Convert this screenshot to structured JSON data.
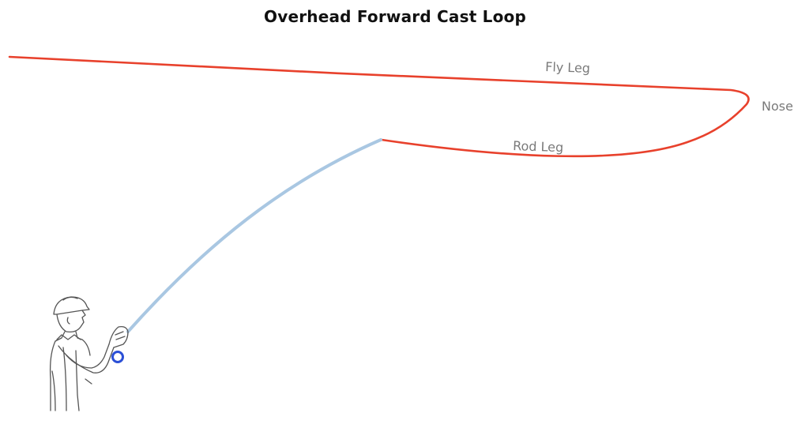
{
  "title": "Overhead Forward Cast Loop",
  "labels": {
    "fly_leg": "Fly Leg",
    "rod_leg": "Rod Leg",
    "nose": "Nose"
  },
  "colors": {
    "line": "#e8412c",
    "rod": "#a9c7e2",
    "reel": "#2b4fd6",
    "label": "#7a7a7a",
    "figure": "#555555"
  },
  "icons": {
    "caster": "angler-figure-icon",
    "reel": "reel-icon"
  }
}
